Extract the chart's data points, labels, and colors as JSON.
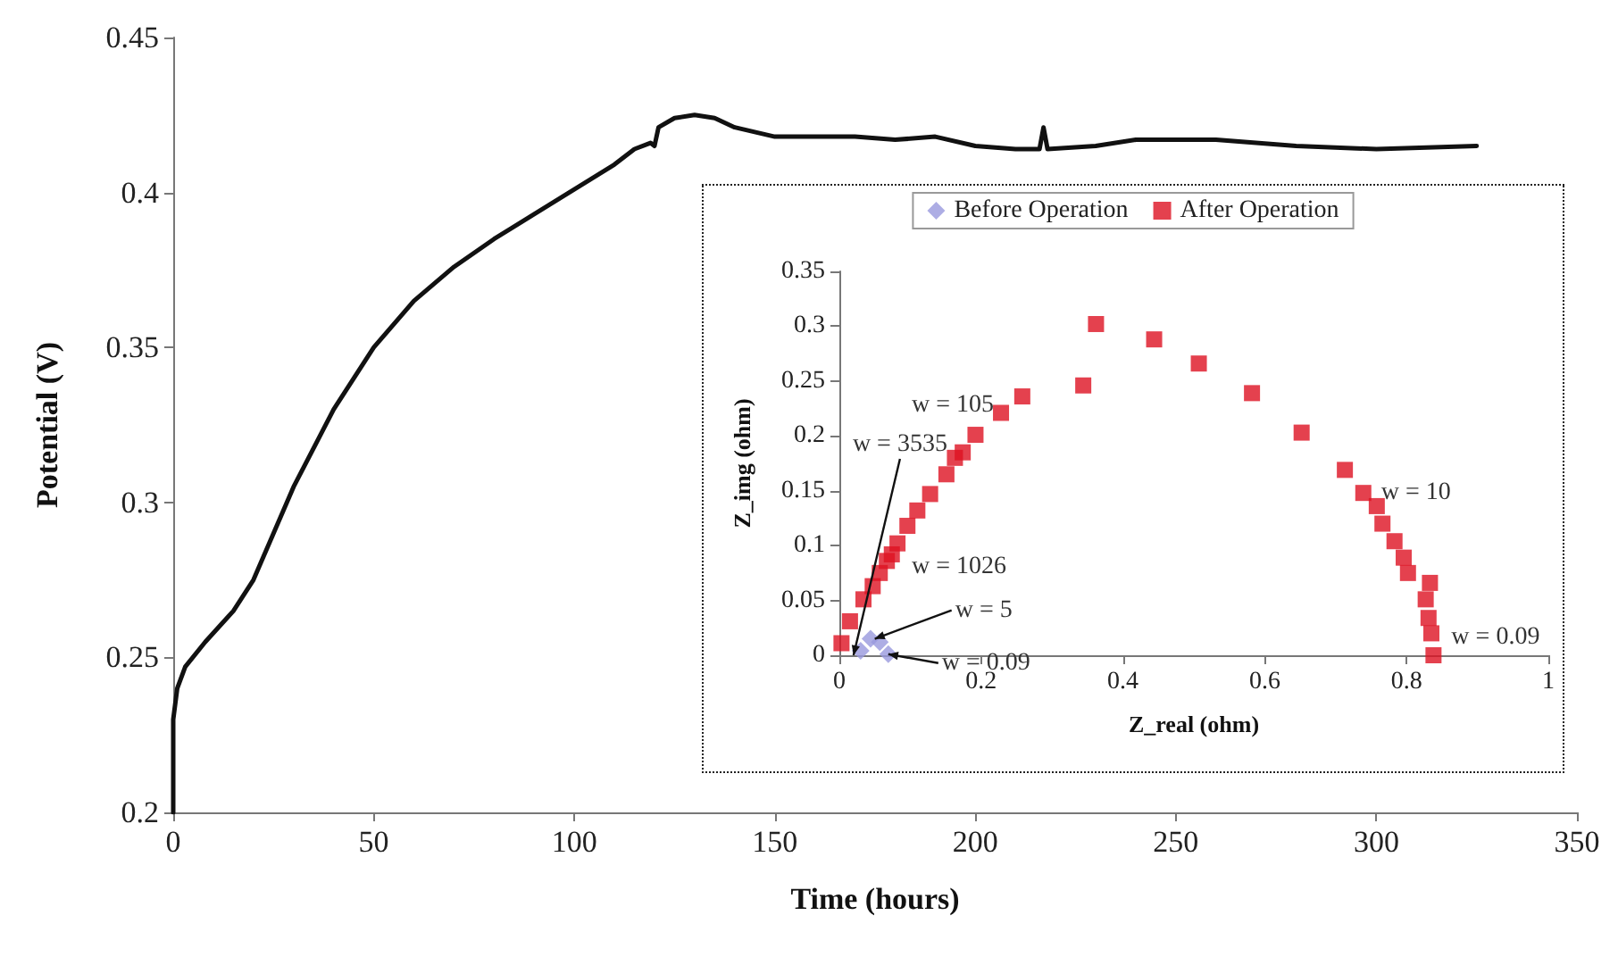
{
  "chart_data": [
    {
      "type": "line",
      "xlabel": "Time (hours)",
      "ylabel": "Potential (V)",
      "xlim": [
        0,
        350
      ],
      "xticks": [
        0,
        50,
        100,
        150,
        200,
        250,
        300,
        350
      ],
      "ylim": [
        0.2,
        0.45
      ],
      "yticks": [
        0.2,
        0.25,
        0.3,
        0.35,
        0.4,
        0.45
      ],
      "grid": false,
      "legend": false,
      "marker": "none",
      "line_style": "solid",
      "x": [
        0,
        0,
        1,
        3,
        8,
        15,
        20,
        25,
        30,
        40,
        50,
        60,
        70,
        80,
        90,
        100,
        110,
        115,
        119,
        120,
        121,
        125,
        130,
        135,
        140,
        150,
        160,
        170,
        180,
        190,
        200,
        210,
        216,
        217,
        218,
        230,
        240,
        260,
        280,
        300,
        325
      ],
      "series": [
        {
          "color": "#111111",
          "values": [
            0.2,
            0.23,
            0.24,
            0.247,
            0.255,
            0.265,
            0.275,
            0.29,
            0.305,
            0.33,
            0.35,
            0.365,
            0.376,
            0.385,
            0.393,
            0.401,
            0.409,
            0.414,
            0.416,
            0.415,
            0.421,
            0.424,
            0.425,
            0.424,
            0.421,
            0.418,
            0.418,
            0.418,
            0.417,
            0.418,
            0.415,
            0.414,
            0.414,
            0.421,
            0.414,
            0.415,
            0.417,
            0.417,
            0.415,
            0.414,
            0.415
          ]
        }
      ]
    },
    {
      "type": "scatter",
      "xlabel": "Z_real (ohm)",
      "ylabel": "Z_img (ohm)",
      "xlim": [
        0,
        1
      ],
      "xticks": [
        0,
        0.2,
        0.4,
        0.6,
        0.8,
        1
      ],
      "ylim": [
        0,
        0.35
      ],
      "yticks": [
        0,
        0.05,
        0.1,
        0.15,
        0.2,
        0.25,
        0.3,
        0.35
      ],
      "grid": false,
      "legend": "top",
      "series": [
        {
          "name": "Before Operation",
          "color": "#9999dd",
          "marker": "diamond",
          "x": [
            0.03,
            0.044,
            0.057,
            0.069
          ],
          "values": [
            0.004,
            0.015,
            0.012,
            0.001
          ]
        },
        {
          "name": "After Operation",
          "color": "#dd1122",
          "marker": "square",
          "x": [
            0.003,
            0.015,
            0.034,
            0.047,
            0.057,
            0.067,
            0.074,
            0.082,
            0.096,
            0.11,
            0.128,
            0.151,
            0.163,
            0.174,
            0.192,
            0.228,
            0.258,
            0.344,
            0.362,
            0.444,
            0.507,
            0.582,
            0.652,
            0.713,
            0.739,
            0.758,
            0.766,
            0.783,
            0.796,
            0.802,
            0.833,
            0.827,
            0.831,
            0.835,
            0.838
          ],
          "values": [
            0.011,
            0.031,
            0.051,
            0.063,
            0.075,
            0.086,
            0.092,
            0.102,
            0.118,
            0.132,
            0.147,
            0.165,
            0.18,
            0.185,
            0.201,
            0.221,
            0.236,
            0.246,
            0.302,
            0.288,
            0.266,
            0.239,
            0.203,
            0.169,
            0.148,
            0.136,
            0.12,
            0.104,
            0.089,
            0.075,
            0.066,
            0.051,
            0.034,
            0.02,
            0
          ]
        }
      ],
      "annotations": [
        {
          "text": "w = 105",
          "x": 0.228,
          "y": 0.221
        },
        {
          "text": "w = 3535",
          "x": 0.02,
          "y": 0
        },
        {
          "text": "w = 1026",
          "x": 0.082,
          "y": 0.1
        },
        {
          "text": "w = 5",
          "x": 0.05,
          "y": 0.015
        },
        {
          "text": "w = 0.09",
          "x": 0.069,
          "y": 0.001
        },
        {
          "text": "w = 10",
          "x": 0.739,
          "y": 0.148
        },
        {
          "text": "w = 0.09",
          "x": 0.838,
          "y": 0
        }
      ]
    }
  ]
}
